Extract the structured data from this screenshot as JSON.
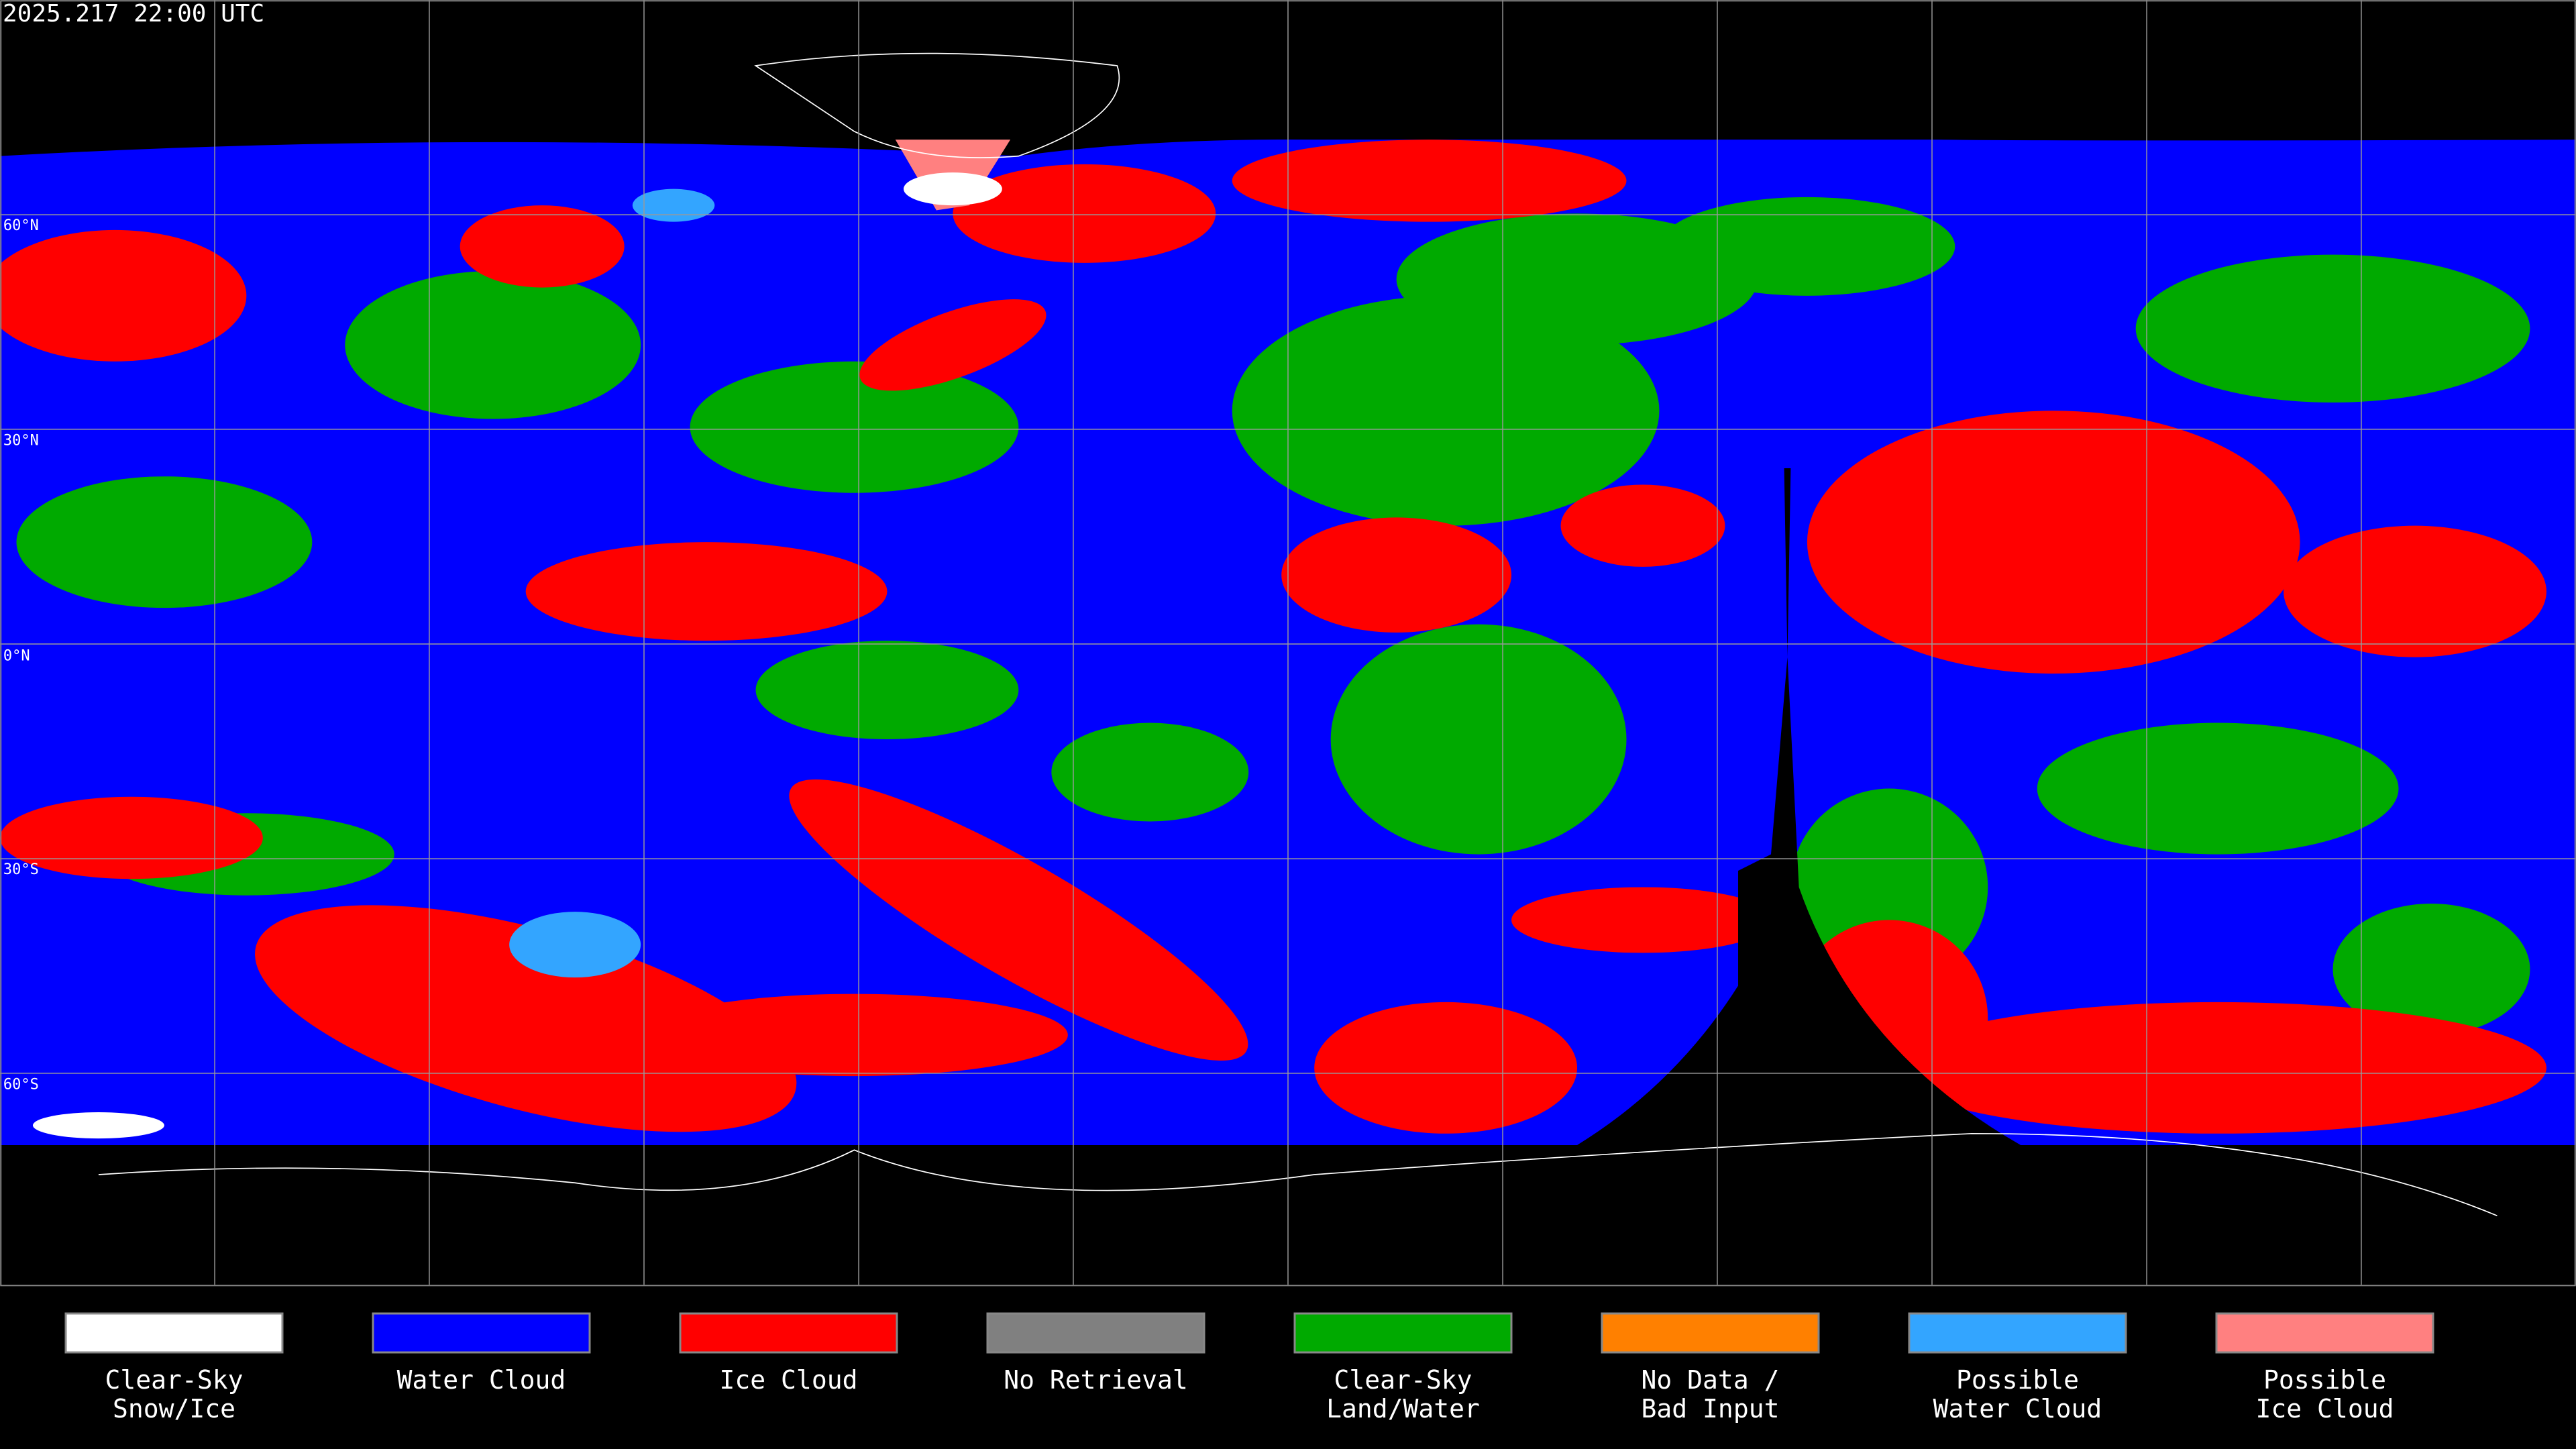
{
  "title": "2025.217 22:00 UTC",
  "map": {
    "latitude_labels": [
      "60°N",
      "30°N",
      "0°N",
      "30°S",
      "60°S"
    ]
  },
  "legend": {
    "items": [
      {
        "label": [
          "Clear-Sky",
          "Snow/Ice"
        ],
        "color": "#ffffff"
      },
      {
        "label": [
          "Water Cloud"
        ],
        "color": "#0000ff"
      },
      {
        "label": [
          "Ice Cloud"
        ],
        "color": "#ff0000"
      },
      {
        "label": [
          "No Retrieval"
        ],
        "color": "#808080"
      },
      {
        "label": [
          "Clear-Sky",
          "Land/Water"
        ],
        "color": "#00aa00"
      },
      {
        "label": [
          "No Data /",
          "Bad Input"
        ],
        "color": "#ff8000"
      },
      {
        "label": [
          "Possible",
          "Water Cloud"
        ],
        "color": "#33a5ff"
      },
      {
        "label": [
          "Possible",
          "Ice Cloud"
        ],
        "color": "#ff8080"
      }
    ]
  }
}
